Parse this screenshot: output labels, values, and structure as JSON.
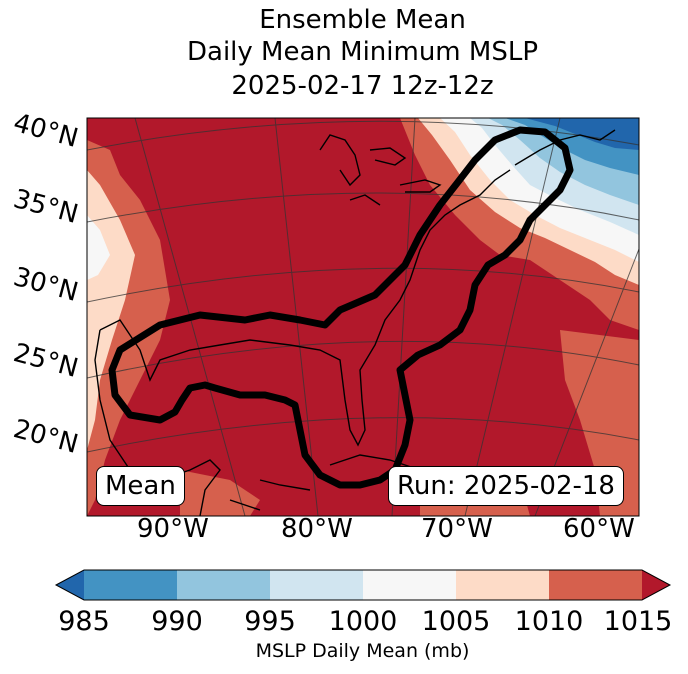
{
  "chart_data": {
    "type": "heatmap",
    "title_lines": [
      "Ensemble Mean",
      "Daily Mean Minimum MSLP",
      "2025-02-17 12z-12z"
    ],
    "lat_labels": [
      "40°N",
      "35°N",
      "30°N",
      "25°N",
      "20°N"
    ],
    "lon_labels": [
      "90°W",
      "80°W",
      "70°W",
      "60°W"
    ],
    "left_box": "Mean",
    "right_box": "Run: 2025-02-18",
    "colorbar": {
      "label": "MSLP Daily Mean (mb)",
      "ticks": [
        "985",
        "990",
        "995",
        "1000",
        "1005",
        "1010",
        "1015"
      ],
      "bins": [
        {
          "range": [
            980,
            985
          ],
          "color": "#2166ac"
        },
        {
          "range": [
            985,
            990
          ],
          "color": "#4393c3"
        },
        {
          "range": [
            990,
            995
          ],
          "color": "#92c5de"
        },
        {
          "range": [
            995,
            1000
          ],
          "color": "#d1e5f0"
        },
        {
          "range": [
            1000,
            1005
          ],
          "color": "#f7f7f7"
        },
        {
          "range": [
            1005,
            1010
          ],
          "color": "#fddbc7"
        },
        {
          "range": [
            1010,
            1015
          ],
          "color": "#d6604d"
        },
        {
          "range": [
            1015,
            1020
          ],
          "color": "#b2182b"
        }
      ]
    }
  }
}
